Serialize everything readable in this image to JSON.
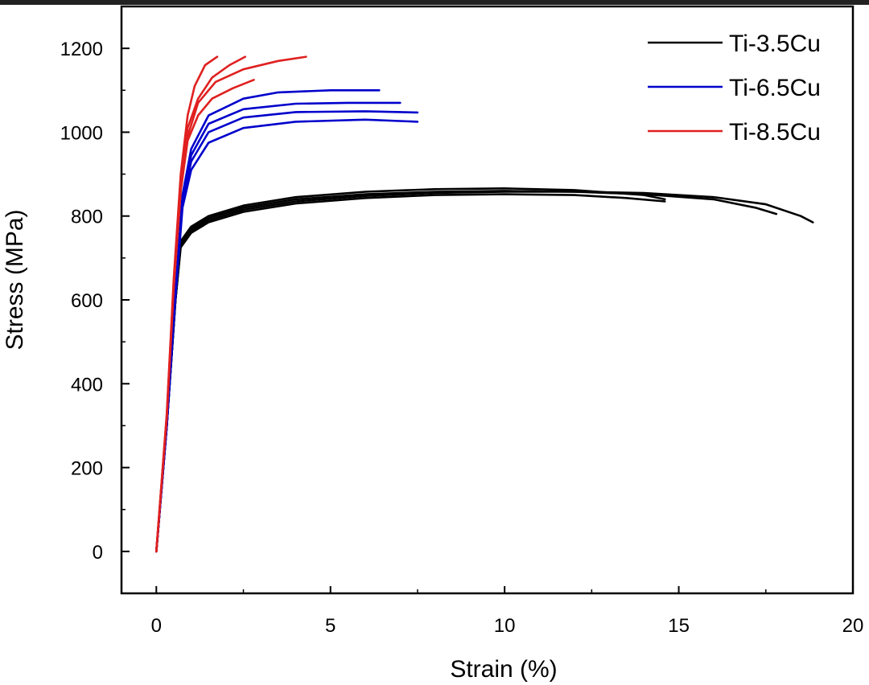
{
  "chart_data": {
    "type": "line",
    "title": "",
    "xlabel": "Strain (%)",
    "ylabel": "Stress (MPa)",
    "xlim": [
      -1,
      20
    ],
    "ylim": [
      -100,
      1300
    ],
    "xticks": [
      0,
      5,
      10,
      15,
      20
    ],
    "xtick_labels": [
      "0",
      "5",
      "10",
      "15",
      "20"
    ],
    "yticks": [
      0,
      200,
      400,
      600,
      800,
      1000,
      1200
    ],
    "ytick_labels": [
      "0",
      "200",
      "400",
      "600",
      "800",
      "1000",
      "1200"
    ],
    "grid": false,
    "legend_position": "top-right",
    "legend": [
      {
        "label": "Ti-3.5Cu",
        "color": "#000000"
      },
      {
        "label": "Ti-6.5Cu",
        "color": "#0000cc"
      },
      {
        "label": "Ti-8.5Cu",
        "color": "#e02020"
      }
    ],
    "series": [
      {
        "name": "Ti-3.5Cu",
        "color": "#000000",
        "x": [
          0,
          0.3,
          0.55,
          0.7,
          1.0,
          1.5,
          2.5,
          4,
          6,
          8,
          10,
          12,
          14,
          14.6
        ],
        "y": [
          0,
          300,
          600,
          740,
          775,
          800,
          825,
          845,
          858,
          864,
          866,
          862,
          850,
          840
        ]
      },
      {
        "name": "Ti-3.5Cu",
        "color": "#000000",
        "x": [
          0,
          0.3,
          0.55,
          0.7,
          1.0,
          1.5,
          2.5,
          4,
          6,
          8,
          10,
          12,
          14,
          16,
          17.2,
          17.8
        ],
        "y": [
          0,
          300,
          600,
          735,
          770,
          795,
          820,
          840,
          852,
          858,
          860,
          858,
          852,
          840,
          820,
          805
        ]
      },
      {
        "name": "Ti-3.5Cu",
        "color": "#000000",
        "x": [
          0,
          0.3,
          0.55,
          0.7,
          1.0,
          1.5,
          2.5,
          4,
          6,
          8,
          10,
          12,
          14,
          16,
          17.5,
          18.5,
          18.85
        ],
        "y": [
          0,
          300,
          600,
          730,
          765,
          790,
          815,
          835,
          848,
          855,
          858,
          858,
          855,
          845,
          828,
          800,
          785
        ]
      },
      {
        "name": "Ti-3.5Cu",
        "color": "#000000",
        "x": [
          0,
          0.3,
          0.55,
          0.7,
          1.0,
          1.5,
          2.5,
          4,
          6,
          8,
          10,
          12,
          13.5,
          14.6
        ],
        "y": [
          0,
          300,
          600,
          725,
          760,
          785,
          810,
          830,
          843,
          850,
          852,
          850,
          843,
          835
        ]
      },
      {
        "name": "Ti-6.5Cu",
        "color": "#0000cc",
        "x": [
          0,
          0.3,
          0.55,
          0.75,
          1.0,
          1.5,
          2.5,
          3.5,
          5,
          6.4
        ],
        "y": [
          0,
          300,
          620,
          850,
          960,
          1040,
          1080,
          1095,
          1100,
          1100
        ]
      },
      {
        "name": "Ti-6.5Cu",
        "color": "#0000cc",
        "x": [
          0,
          0.3,
          0.55,
          0.75,
          1.0,
          1.5,
          2.5,
          4,
          5.5,
          7.0
        ],
        "y": [
          0,
          300,
          615,
          840,
          945,
          1020,
          1055,
          1068,
          1070,
          1070
        ]
      },
      {
        "name": "Ti-6.5Cu",
        "color": "#0000cc",
        "x": [
          0,
          0.3,
          0.55,
          0.75,
          1.0,
          1.5,
          2.5,
          4,
          6,
          7.5
        ],
        "y": [
          0,
          300,
          610,
          830,
          930,
          1000,
          1035,
          1048,
          1050,
          1047
        ]
      },
      {
        "name": "Ti-6.5Cu",
        "color": "#0000cc",
        "x": [
          0,
          0.3,
          0.55,
          0.75,
          1.0,
          1.5,
          2.5,
          4,
          6,
          7.5
        ],
        "y": [
          0,
          300,
          605,
          820,
          910,
          975,
          1010,
          1025,
          1030,
          1025
        ]
      },
      {
        "name": "Ti-8.5Cu",
        "color": "#e02020",
        "x": [
          0,
          0.3,
          0.5,
          0.7,
          0.9,
          1.1,
          1.4,
          1.75
        ],
        "y": [
          0,
          330,
          650,
          900,
          1040,
          1110,
          1160,
          1180
        ]
      },
      {
        "name": "Ti-8.5Cu",
        "color": "#e02020",
        "x": [
          0,
          0.3,
          0.5,
          0.7,
          0.9,
          1.2,
          1.6,
          2.1,
          2.55
        ],
        "y": [
          0,
          325,
          640,
          880,
          1010,
          1080,
          1130,
          1160,
          1180
        ]
      },
      {
        "name": "Ti-8.5Cu",
        "color": "#e02020",
        "x": [
          0,
          0.3,
          0.5,
          0.7,
          0.9,
          1.2,
          1.6,
          2.2,
          2.8
        ],
        "y": [
          0,
          320,
          630,
          860,
          980,
          1040,
          1080,
          1105,
          1125
        ]
      },
      {
        "name": "Ti-8.5Cu",
        "color": "#e02020",
        "x": [
          0,
          0.3,
          0.5,
          0.7,
          0.9,
          1.2,
          1.7,
          2.5,
          3.5,
          4.3
        ],
        "y": [
          0,
          320,
          630,
          860,
          990,
          1070,
          1120,
          1150,
          1170,
          1180
        ]
      }
    ]
  }
}
